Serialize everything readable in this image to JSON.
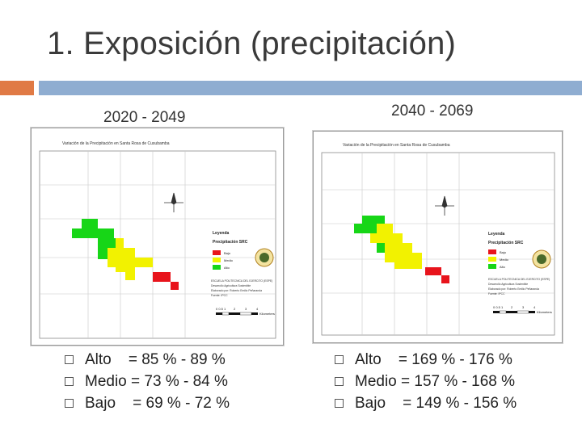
{
  "slide": {
    "title": "1. Exposición (precipitación)"
  },
  "panels": [
    {
      "period": "2020 - 2049",
      "map": {
        "title": "Variación de la Precipitación en Santa Rosa de Cusubamba",
        "legend_title": "Leyenda",
        "legend_subtitle": "Precipitación SRC",
        "legend_items": [
          {
            "label": "Bajo",
            "color": "#e8141c"
          },
          {
            "label": "Medio",
            "color": "#f2f200"
          },
          {
            "label": "Alto",
            "color": "#17d617"
          }
        ],
        "info_lines": [
          "ESCUELA POLITECNICA DEL EJERCITO (ESPE)",
          "Desarrollo Agricultura Sostenible",
          "Elaborado por: Roberto Emilio Peñaranda",
          "Fuente: IPCC"
        ],
        "scale_label": "Kilometers",
        "scale_ticks": [
          "0 0.5 1",
          "2",
          "3",
          "4"
        ]
      },
      "items": [
        {
          "label": "Alto    = 85 % - 89 %"
        },
        {
          "label": "Medio = 73 % - 84 %"
        },
        {
          "label": "Bajo    = 69 % - 72 %"
        }
      ]
    },
    {
      "period": "2040 - 2069",
      "map": {
        "title": "Variación de la Precipitación en Santa Rosa de Cusubamba",
        "legend_title": "Leyenda",
        "legend_subtitle": "Precipitación SRC",
        "legend_items": [
          {
            "label": "Bajo",
            "color": "#e8141c"
          },
          {
            "label": "Medio",
            "color": "#f2f200"
          },
          {
            "label": "Alto",
            "color": "#17d617"
          }
        ],
        "info_lines": [
          "ESCUELA POLITECNICA DEL EJERCITO (ESPE)",
          "Desarrollo Agricultura Sostenible",
          "Elaborado por: Roberto Emilio Peñaranda",
          "Fuente: IPCC"
        ],
        "scale_label": "Kilometers",
        "scale_ticks": [
          "0 0.5 1",
          "2",
          "3",
          "4"
        ]
      },
      "items": [
        {
          "label": "Alto    = 169 % - 176 %"
        },
        {
          "label": "Medio = 157 % - 168 %"
        },
        {
          "label": "Bajo    = 149 % - 156 %"
        }
      ]
    }
  ]
}
